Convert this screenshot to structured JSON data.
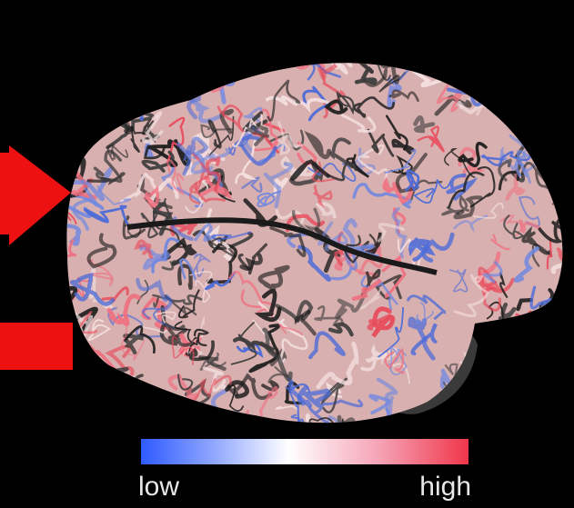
{
  "colorbar": {
    "low_label": "low",
    "high_label": "high"
  }
}
